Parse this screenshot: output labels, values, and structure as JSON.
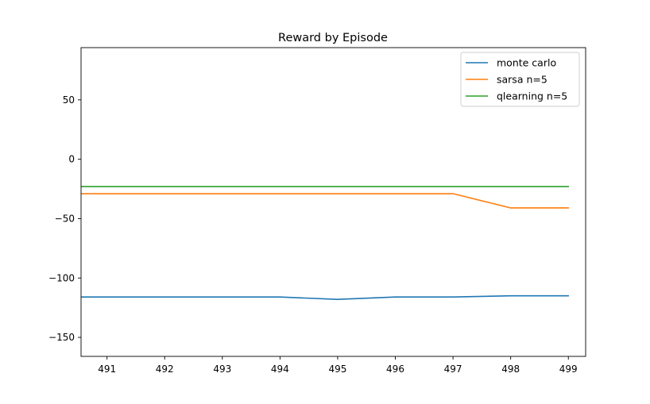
{
  "chart_data": {
    "type": "line",
    "title": "Reward by Episode",
    "xlabel": "",
    "ylabel": "",
    "x": [
      491,
      492,
      493,
      494,
      495,
      496,
      497,
      498,
      499
    ],
    "xlim": [
      490.55,
      499.3
    ],
    "ylim": [
      -166,
      94
    ],
    "x_ticks": [
      "491",
      "492",
      "493",
      "494",
      "495",
      "496",
      "497",
      "498",
      "499"
    ],
    "y_ticks": [
      {
        "value": 50,
        "label": "50"
      },
      {
        "value": 0,
        "label": "0"
      },
      {
        "value": -50,
        "label": "−50"
      },
      {
        "value": -100,
        "label": "−100"
      },
      {
        "value": -150,
        "label": "−150"
      }
    ],
    "grid": false,
    "legend_position": "top-right",
    "series": [
      {
        "name": "monte carlo",
        "color": "#1f77b4",
        "x": [
          490.55,
          491,
          492,
          493,
          494,
          495,
          496,
          497,
          498,
          499
        ],
        "values": [
          -116,
          -116,
          -116,
          -116,
          -116,
          -118,
          -116,
          -116,
          -115,
          -115
        ]
      },
      {
        "name": "sarsa n=5",
        "color": "#ff7f0e",
        "x": [
          490.55,
          491,
          492,
          493,
          494,
          495,
          496,
          497,
          498,
          499
        ],
        "values": [
          -29,
          -29,
          -29,
          -29,
          -29,
          -29,
          -29,
          -29,
          -41,
          -41
        ]
      },
      {
        "name": "qlearning n=5",
        "color": "#2ca02c",
        "x": [
          490.55,
          491,
          492,
          493,
          494,
          495,
          496,
          497,
          498,
          499
        ],
        "values": [
          -23,
          -23,
          -23,
          -23,
          -23,
          -23,
          -23,
          -23,
          -23,
          -23
        ]
      }
    ]
  }
}
